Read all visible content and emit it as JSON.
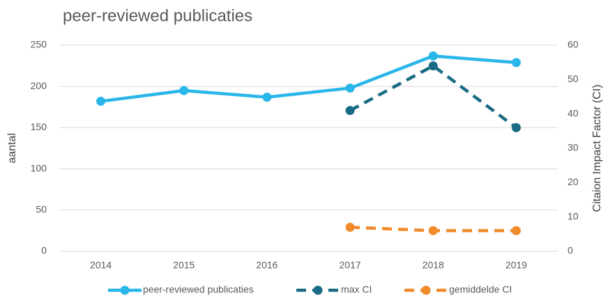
{
  "chart_data": {
    "type": "line",
    "title": "peer-reviewed publicaties",
    "y_label": "aantal",
    "y2_label": "Citaion Impact Factor (CI)",
    "categories": [
      "2014",
      "2015",
      "2016",
      "2017",
      "2018",
      "2019"
    ],
    "series": [
      {
        "name": "peer-reviewed publicaties",
        "color": "#29b6e8",
        "dash": false,
        "values": [
          182,
          195,
          187,
          198,
          237,
          229
        ]
      },
      {
        "name": "max CI",
        "color": "#1a6b85",
        "dash": true,
        "axis": "y2",
        "values": [
          null,
          null,
          null,
          41,
          54,
          36
        ]
      },
      {
        "name": "gemiddelde CI",
        "color": "#f08a2b",
        "dash": true,
        "axis": "y2",
        "values": [
          null,
          null,
          null,
          7,
          6,
          6
        ]
      }
    ],
    "ylim": [
      0,
      250
    ],
    "yticks": [
      0,
      50,
      100,
      150,
      200,
      250
    ],
    "y2lim": [
      0,
      60
    ],
    "y2ticks": [
      0,
      10,
      20,
      30,
      40,
      50,
      60
    ],
    "grid": true,
    "legend": "bottom"
  }
}
